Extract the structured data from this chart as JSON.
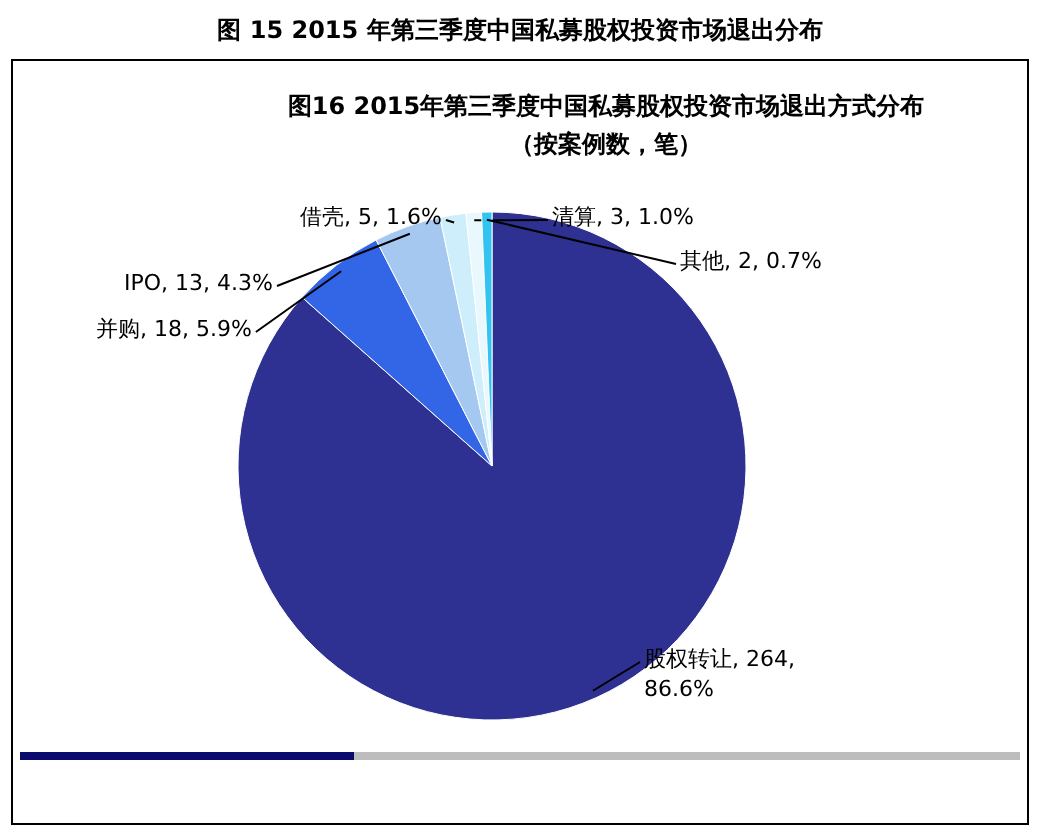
{
  "chart_data": {
    "type": "pie",
    "title": "图 15 2015 年第三季度中国私募股权投资市场退出分布",
    "subtitle": "图16 2015年第三季度中国私募股权投资市场退出方式分布",
    "annotations": [
      "（按案例数，笔）"
    ],
    "categories": [
      "股权转让",
      "并购",
      "IPO",
      "借壳",
      "清算",
      "其他"
    ],
    "values": [
      264,
      18,
      13,
      5,
      3,
      2
    ],
    "value_labels": [
      ", 264, 86.6%",
      ", 18, 5.9%",
      ", 13, 4.3%",
      ", 5, 1.6%",
      ", 3, 1.0%",
      ", 2, 0.7%"
    ],
    "colors": [
      "#2e3192",
      "#3366e6",
      "#a4c8f0",
      "#cdeefa",
      "#e8f8fc",
      "#33c3f0"
    ]
  }
}
